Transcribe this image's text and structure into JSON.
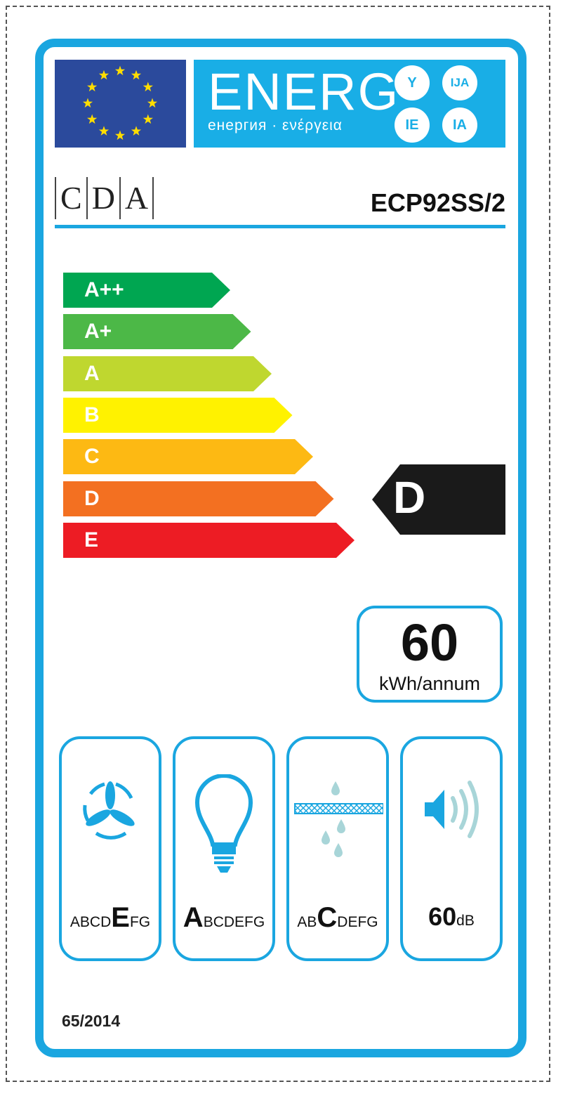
{
  "header": {
    "energy_word": "ENERG",
    "energy_subtitle": "енергия · ενέργεια",
    "language_badges": [
      "Y",
      "IJA",
      "IE",
      "IA"
    ]
  },
  "supplier": {
    "brand_letters": [
      "C",
      "D",
      "A"
    ],
    "model": "ECP92SS/2"
  },
  "scale": [
    {
      "label": "A++",
      "color": "#00a651"
    },
    {
      "label": "A+",
      "color": "#4cb847"
    },
    {
      "label": "A",
      "color": "#bfd72f"
    },
    {
      "label": "B",
      "color": "#fff200"
    },
    {
      "label": "C",
      "color": "#fdb913"
    },
    {
      "label": "D",
      "color": "#f37021"
    },
    {
      "label": "E",
      "color": "#ed1c24"
    }
  ],
  "rating": {
    "class": "D",
    "row_index": 5
  },
  "consumption": {
    "value": "60",
    "unit": "kWh/annum"
  },
  "classes": [
    {
      "icon": "fan-icon",
      "before": "ABCD",
      "selected": "E",
      "after": "FG"
    },
    {
      "icon": "light-bulb-icon",
      "before": "",
      "selected": "A",
      "after": "BCDEFG"
    },
    {
      "icon": "grease-filter-icon",
      "before": "AB",
      "selected": "C",
      "after": "DEFG"
    }
  ],
  "noise": {
    "value": "60",
    "unit": "dB"
  },
  "regulation": "65/2014",
  "colors": {
    "frame": "#1aa6e0",
    "energ_bg": "#19aee6",
    "flag": "#2b4a9c",
    "star": "#ffdd00"
  }
}
